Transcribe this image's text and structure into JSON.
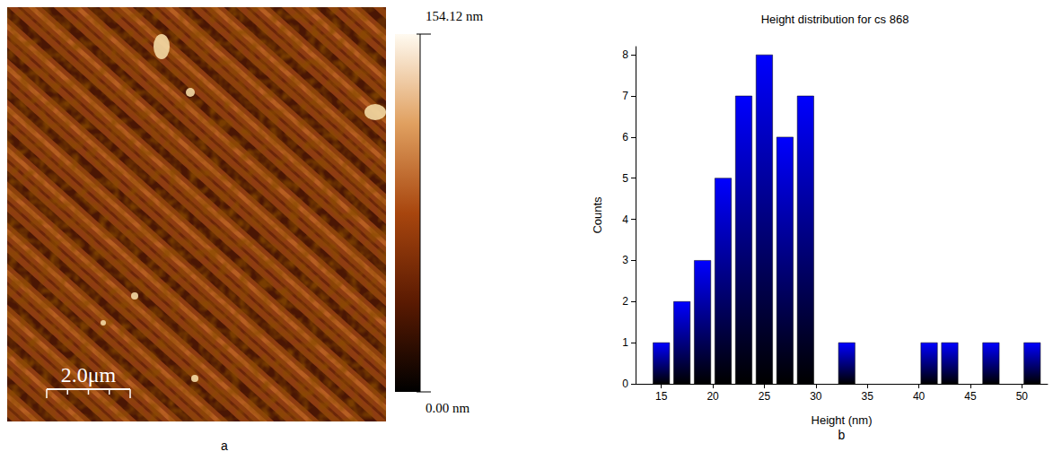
{
  "image_panel": {
    "label": "a",
    "scale_bar": "2.0μm",
    "colorbar": {
      "range": [
        0,
        154.12
      ],
      "ticks": [
        {
          "value": 154.12,
          "label": "154.12 nm"
        },
        {
          "value": 0,
          "label": "0.00 nm"
        }
      ]
    }
  },
  "chart_data": {
    "type": "histogram",
    "panel": "b",
    "title": "Height distribution for cs 868",
    "x_label": "Height (nm)",
    "y_label": "Counts",
    "bins": [
      14,
      16,
      18,
      20,
      22,
      24,
      26,
      28,
      30,
      32,
      34,
      36,
      38,
      40,
      42,
      44,
      46,
      48,
      50,
      52
    ],
    "values": [
      1,
      2,
      3,
      5,
      7,
      8,
      6,
      7,
      0,
      1,
      0,
      0,
      0,
      1,
      1,
      0,
      1,
      0,
      1
    ],
    "color": "#0000ff",
    "xlim": [
      12.5,
      52.5
    ],
    "xticks": [
      15,
      20,
      25,
      30,
      35,
      40,
      45,
      50
    ],
    "ylim": [
      0,
      8.2
    ],
    "yticks": [
      0,
      1,
      2,
      3,
      4,
      5,
      6,
      7,
      8
    ],
    "grid": false
  }
}
